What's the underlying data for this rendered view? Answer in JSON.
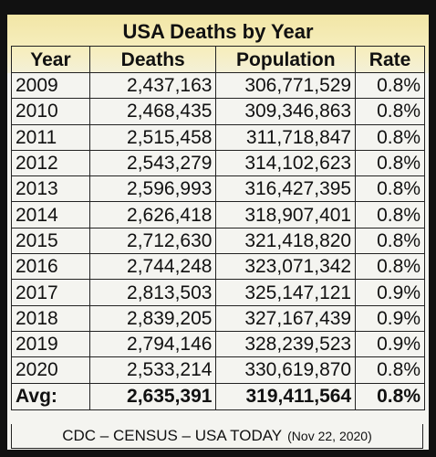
{
  "header": {
    "title": "USA Deaths by Year"
  },
  "table": {
    "columns": [
      "Year",
      "Deaths",
      "Population",
      "Rate"
    ],
    "rows": [
      [
        "2009",
        "2,437,163",
        "306,771,529",
        "0.8%"
      ],
      [
        "2010",
        "2,468,435",
        "309,346,863",
        "0.8%"
      ],
      [
        "2011",
        "2,515,458",
        "311,718,847",
        "0.8%"
      ],
      [
        "2012",
        "2,543,279",
        "314,102,623",
        "0.8%"
      ],
      [
        "2013",
        "2,596,993",
        "316,427,395",
        "0.8%"
      ],
      [
        "2014",
        "2,626,418",
        "318,907,401",
        "0.8%"
      ],
      [
        "2015",
        "2,712,630",
        "321,418,820",
        "0.8%"
      ],
      [
        "2016",
        "2,744,248",
        "323,071,342",
        "0.8%"
      ],
      [
        "2017",
        "2,813,503",
        "325,147,121",
        "0.9%"
      ],
      [
        "2018",
        "2,839,205",
        "327,167,439",
        "0.9%"
      ],
      [
        "2019",
        "2,794,146",
        "328,239,523",
        "0.9%"
      ],
      [
        "2020",
        "2,533,214",
        "330,619,870",
        "0.8%"
      ]
    ],
    "average": [
      "Avg:",
      "2,635,391",
      "319,411,564",
      "0.8%"
    ]
  },
  "footer": {
    "source": "CDC – CENSUS – USA TODAY",
    "date": "(Nov 22, 2020)"
  }
}
